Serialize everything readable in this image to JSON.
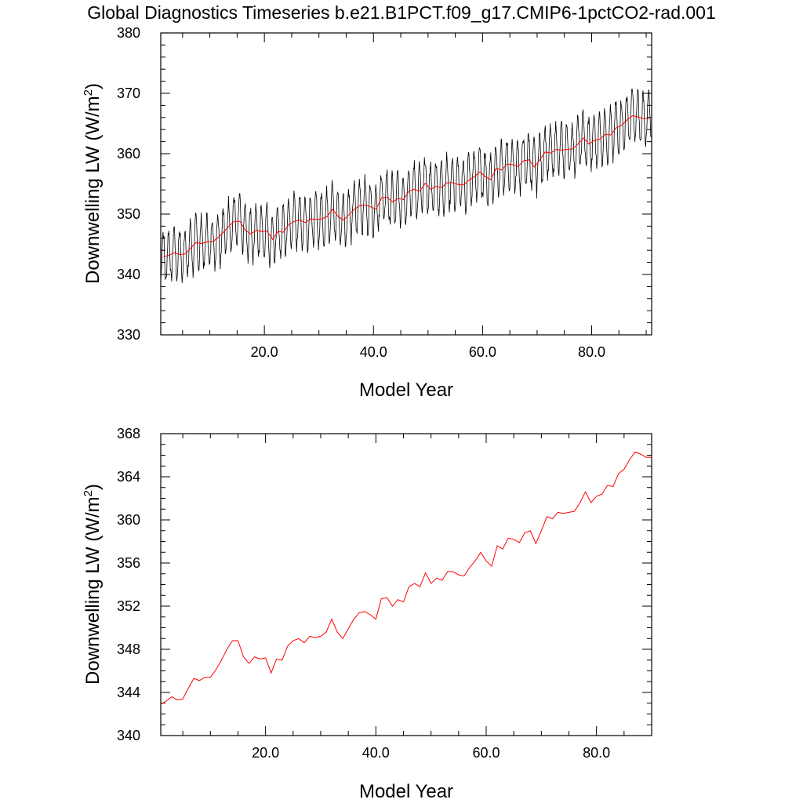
{
  "figure": {
    "title": "Global Diagnostics Timeseries b.e21.B1PCT.f09_g17.CMIP6-1pctCO2-rad.001"
  },
  "chart_data": [
    {
      "type": "line",
      "panel": "monthly-and-annual",
      "xlabel": "Model Year",
      "ylabel": "Downwelling LW (W/m",
      "ylabel_superscript": "2",
      "ylabel_suffix": ")",
      "xlim": [
        1,
        91
      ],
      "ylim": [
        330,
        380
      ],
      "xticks": [
        20,
        40,
        60,
        80
      ],
      "xtick_labels": [
        "20.0",
        "40.0",
        "60.0",
        "80.0"
      ],
      "yticks": [
        330,
        340,
        350,
        360,
        370,
        380
      ],
      "ytick_labels": [
        "330",
        "340",
        "350",
        "360",
        "370",
        "380"
      ],
      "grid": false,
      "monthly_series": {
        "color": "#000000",
        "start_year": 1,
        "months_per_year": 12,
        "seasonal_amplitude": 4.2
      },
      "annual_series": {
        "color": "#ff0000"
      }
    },
    {
      "type": "line",
      "panel": "annual-mean",
      "xlabel": "Model Year",
      "ylabel": "Downwelling LW (W/m",
      "ylabel_superscript": "2",
      "ylabel_suffix": ")",
      "xlim": [
        1,
        90
      ],
      "ylim": [
        340,
        368
      ],
      "xticks": [
        20,
        40,
        60,
        80
      ],
      "xtick_labels": [
        "20.0",
        "40.0",
        "60.0",
        "80.0"
      ],
      "yticks": [
        340,
        344,
        348,
        352,
        356,
        360,
        364,
        368
      ],
      "ytick_labels": [
        "340",
        "344",
        "348",
        "352",
        "356",
        "360",
        "364",
        "368"
      ],
      "grid": false,
      "annual_series": {
        "color": "#ff0000"
      }
    }
  ],
  "annual_means": {
    "x": [
      1,
      2,
      3,
      4,
      5,
      6,
      7,
      8,
      9,
      10,
      11,
      12,
      13,
      14,
      15,
      16,
      17,
      18,
      19,
      20,
      21,
      22,
      23,
      24,
      25,
      26,
      27,
      28,
      29,
      30,
      31,
      32,
      33,
      34,
      35,
      36,
      37,
      38,
      39,
      40,
      41,
      42,
      43,
      44,
      45,
      46,
      47,
      48,
      49,
      50,
      51,
      52,
      53,
      54,
      55,
      56,
      57,
      58,
      59,
      60,
      61,
      62,
      63,
      64,
      65,
      66,
      67,
      68,
      69,
      70,
      71,
      72,
      73,
      74,
      75,
      76,
      77,
      78,
      79,
      80,
      81,
      82,
      83,
      84,
      85,
      86,
      87,
      88,
      89,
      90
    ],
    "y": [
      342.9,
      343.2,
      343.6,
      343.3,
      343.4,
      344.4,
      345.3,
      345.1,
      345.4,
      345.4,
      346.1,
      347.0,
      348.0,
      348.8,
      348.8,
      347.3,
      346.7,
      347.3,
      347.1,
      347.2,
      345.8,
      347.1,
      347.0,
      348.3,
      348.8,
      349.0,
      348.6,
      349.2,
      349.1,
      349.2,
      349.6,
      350.8,
      349.6,
      349.0,
      349.9,
      350.8,
      351.4,
      351.5,
      351.2,
      350.8,
      352.7,
      352.8,
      352.0,
      352.6,
      352.4,
      353.8,
      354.1,
      353.8,
      355.1,
      354.1,
      354.6,
      354.4,
      355.2,
      355.2,
      354.9,
      354.8,
      355.6,
      356.2,
      357.0,
      356.2,
      355.7,
      357.6,
      357.3,
      358.3,
      358.2,
      357.9,
      358.8,
      359.0,
      357.8,
      359.0,
      360.3,
      360.1,
      360.7,
      360.6,
      360.7,
      360.8,
      361.6,
      362.6,
      361.6,
      362.2,
      362.4,
      363.2,
      363.1,
      364.3,
      364.7,
      365.6,
      366.3,
      366.1,
      365.8,
      365.8
    ]
  }
}
